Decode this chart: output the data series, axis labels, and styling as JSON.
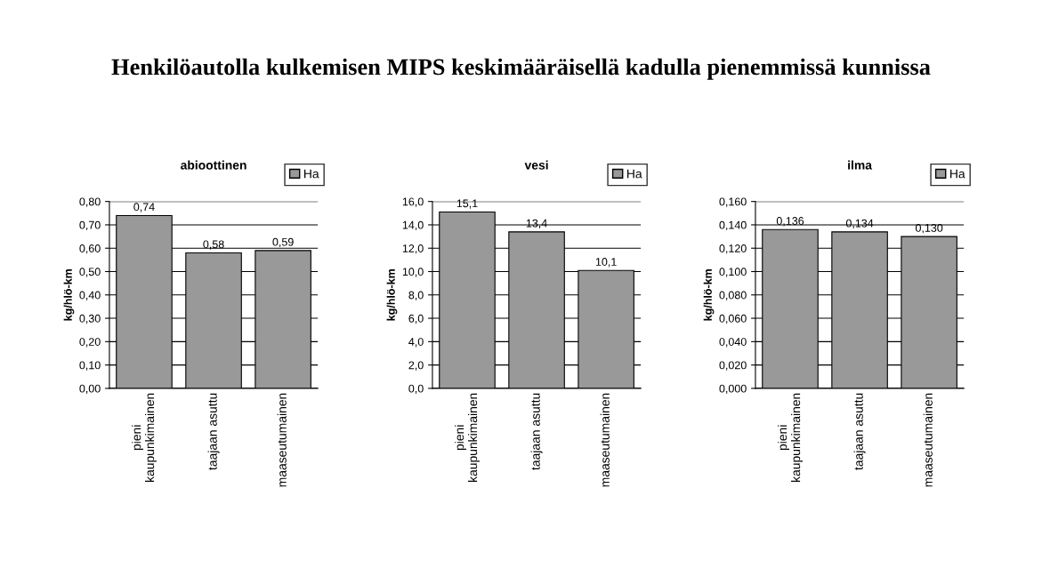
{
  "chart_data": [
    {
      "type": "bar",
      "title": "abioottinen",
      "ylabel": "kg/hlö-km",
      "annotations": [
        "Henkilöautolla kulkemisen MIPS keskimääräisellä kadulla pienemmissä kunnissa"
      ],
      "categories": [
        "pieni kaupunkimainen",
        "taajaan asuttu",
        "maaseutumainen"
      ],
      "series": [
        {
          "name": "Ha",
          "color": "#999999",
          "values": [
            0.74,
            0.58,
            0.59
          ]
        }
      ],
      "ylim": [
        0,
        0.8
      ],
      "yticks": [
        {
          "value": 0,
          "label": "0,00"
        },
        {
          "value": 0.1,
          "label": "0,10"
        },
        {
          "value": 0.2,
          "label": "0,20"
        },
        {
          "value": 0.3,
          "label": "0,30"
        },
        {
          "value": 0.4,
          "label": "0,40"
        },
        {
          "value": 0.5,
          "label": "0,50"
        },
        {
          "value": 0.6,
          "label": "0,60"
        },
        {
          "value": 0.7,
          "label": "0,70"
        },
        {
          "value": 0.8,
          "label": "0,80"
        }
      ],
      "value_labels": [
        "0,74",
        "0,58",
        "0,59"
      ],
      "grid": "y",
      "legend": "top right"
    },
    {
      "type": "bar",
      "title": "vesi",
      "ylabel": "kg/hlö-km",
      "categories": [
        "pieni kaupunkimainen",
        "taajaan asuttu",
        "maaseutumainen"
      ],
      "series": [
        {
          "name": "Ha",
          "color": "#999999",
          "values": [
            15.1,
            13.4,
            10.1
          ]
        }
      ],
      "ylim": [
        0,
        16
      ],
      "yticks": [
        {
          "value": 0,
          "label": "0,0"
        },
        {
          "value": 2,
          "label": "2,0"
        },
        {
          "value": 4,
          "label": "4,0"
        },
        {
          "value": 6,
          "label": "6,0"
        },
        {
          "value": 8,
          "label": "8,0"
        },
        {
          "value": 10,
          "label": "10,0"
        },
        {
          "value": 12,
          "label": "12,0"
        },
        {
          "value": 14,
          "label": "14,0"
        },
        {
          "value": 16,
          "label": "16,0"
        }
      ],
      "value_labels": [
        "15,1",
        "13,4",
        "10,1"
      ],
      "grid": "y",
      "legend": "top right"
    },
    {
      "type": "bar",
      "title": "ilma",
      "ylabel": "kg/hlö-km",
      "categories": [
        "pieni kaupunkimainen",
        "taajaan asuttu",
        "maaseutumainen"
      ],
      "series": [
        {
          "name": "Ha",
          "color": "#999999",
          "values": [
            0.136,
            0.134,
            0.13
          ]
        }
      ],
      "ylim": [
        0,
        0.16
      ],
      "yticks": [
        {
          "value": 0,
          "label": "0,000"
        },
        {
          "value": 0.02,
          "label": "0,020"
        },
        {
          "value": 0.04,
          "label": "0,040"
        },
        {
          "value": 0.06,
          "label": "0,060"
        },
        {
          "value": 0.08,
          "label": "0,080"
        },
        {
          "value": 0.1,
          "label": "0,100"
        },
        {
          "value": 0.12,
          "label": "0,120"
        },
        {
          "value": 0.14,
          "label": "0,140"
        },
        {
          "value": 0.16,
          "label": "0,160"
        }
      ],
      "value_labels": [
        "0,136",
        "0,134",
        "0,130"
      ],
      "grid": "y",
      "legend": "top right"
    }
  ]
}
